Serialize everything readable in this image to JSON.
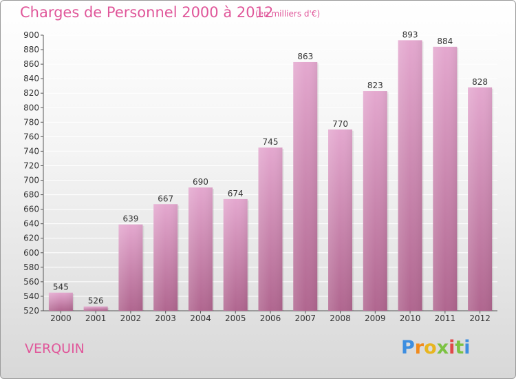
{
  "header": {
    "title": "Charges de Personnel 2000 à 2012",
    "subtitle": "(en milliers d'€)"
  },
  "footer": {
    "commune": "VERQUIN",
    "logo_letters": [
      "P",
      "r",
      "o",
      "x",
      "i",
      "t",
      "i"
    ]
  },
  "colors": {
    "title": "#e0579a",
    "bar_top": "#e4a8cf",
    "bar_bottom": "#b0668f",
    "grid": "#ffffff",
    "axis_text": "#333333"
  },
  "chart_data": {
    "type": "bar",
    "title": "Charges de Personnel 2000 à 2012",
    "subtitle": "(en milliers d'€)",
    "categories": [
      "2000",
      "2001",
      "2002",
      "2003",
      "2004",
      "2005",
      "2006",
      "2007",
      "2008",
      "2009",
      "2010",
      "2011",
      "2012"
    ],
    "values": [
      545,
      526,
      639,
      667,
      690,
      674,
      745,
      863,
      770,
      823,
      893,
      884,
      828
    ],
    "ylim": [
      520,
      900
    ],
    "yticks": [
      520,
      540,
      560,
      580,
      600,
      620,
      640,
      660,
      680,
      700,
      720,
      740,
      760,
      780,
      800,
      820,
      840,
      860,
      880,
      900
    ],
    "grid": true,
    "xlabel": "",
    "ylabel": ""
  }
}
